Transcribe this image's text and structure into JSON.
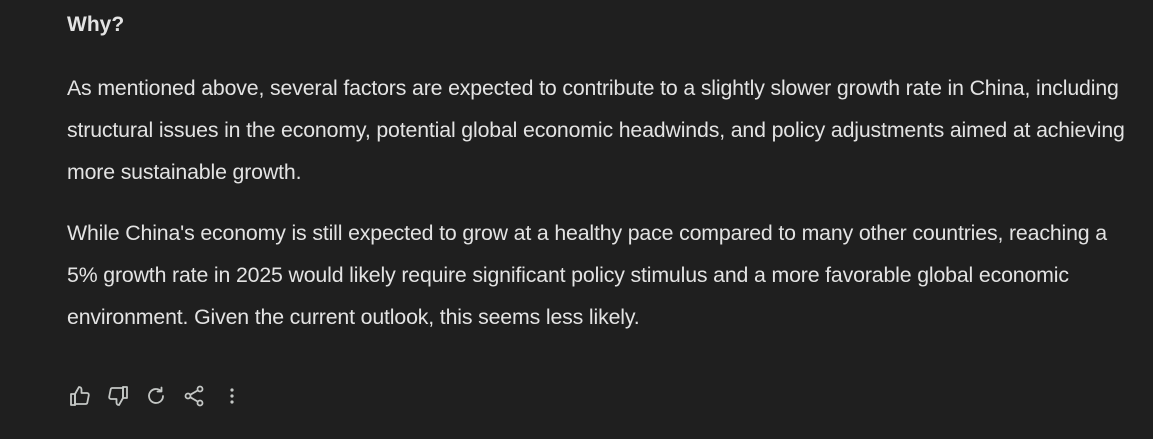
{
  "response": {
    "heading": "Why?",
    "paragraphs": [
      "As mentioned above, several factors are expected to contribute to a slightly slower growth rate in China, including structural issues in the economy, potential global economic headwinds, and policy adjustments aimed at achieving more sustainable growth.",
      "While China's economy is still expected to grow at a healthy pace compared to many other countries, reaching a 5% growth rate in 2025 would likely require significant policy stimulus and a more favorable global economic environment. Given the current outlook, this seems less likely."
    ]
  },
  "actions": [
    {
      "icon": "thumbs-up-icon"
    },
    {
      "icon": "thumbs-down-icon"
    },
    {
      "icon": "regenerate-icon"
    },
    {
      "icon": "share-icon"
    },
    {
      "icon": "more-vert-icon"
    }
  ],
  "colors": {
    "background": "#1f1f1f",
    "text": "#e3e3e3",
    "icon": "#c4c7c5"
  }
}
